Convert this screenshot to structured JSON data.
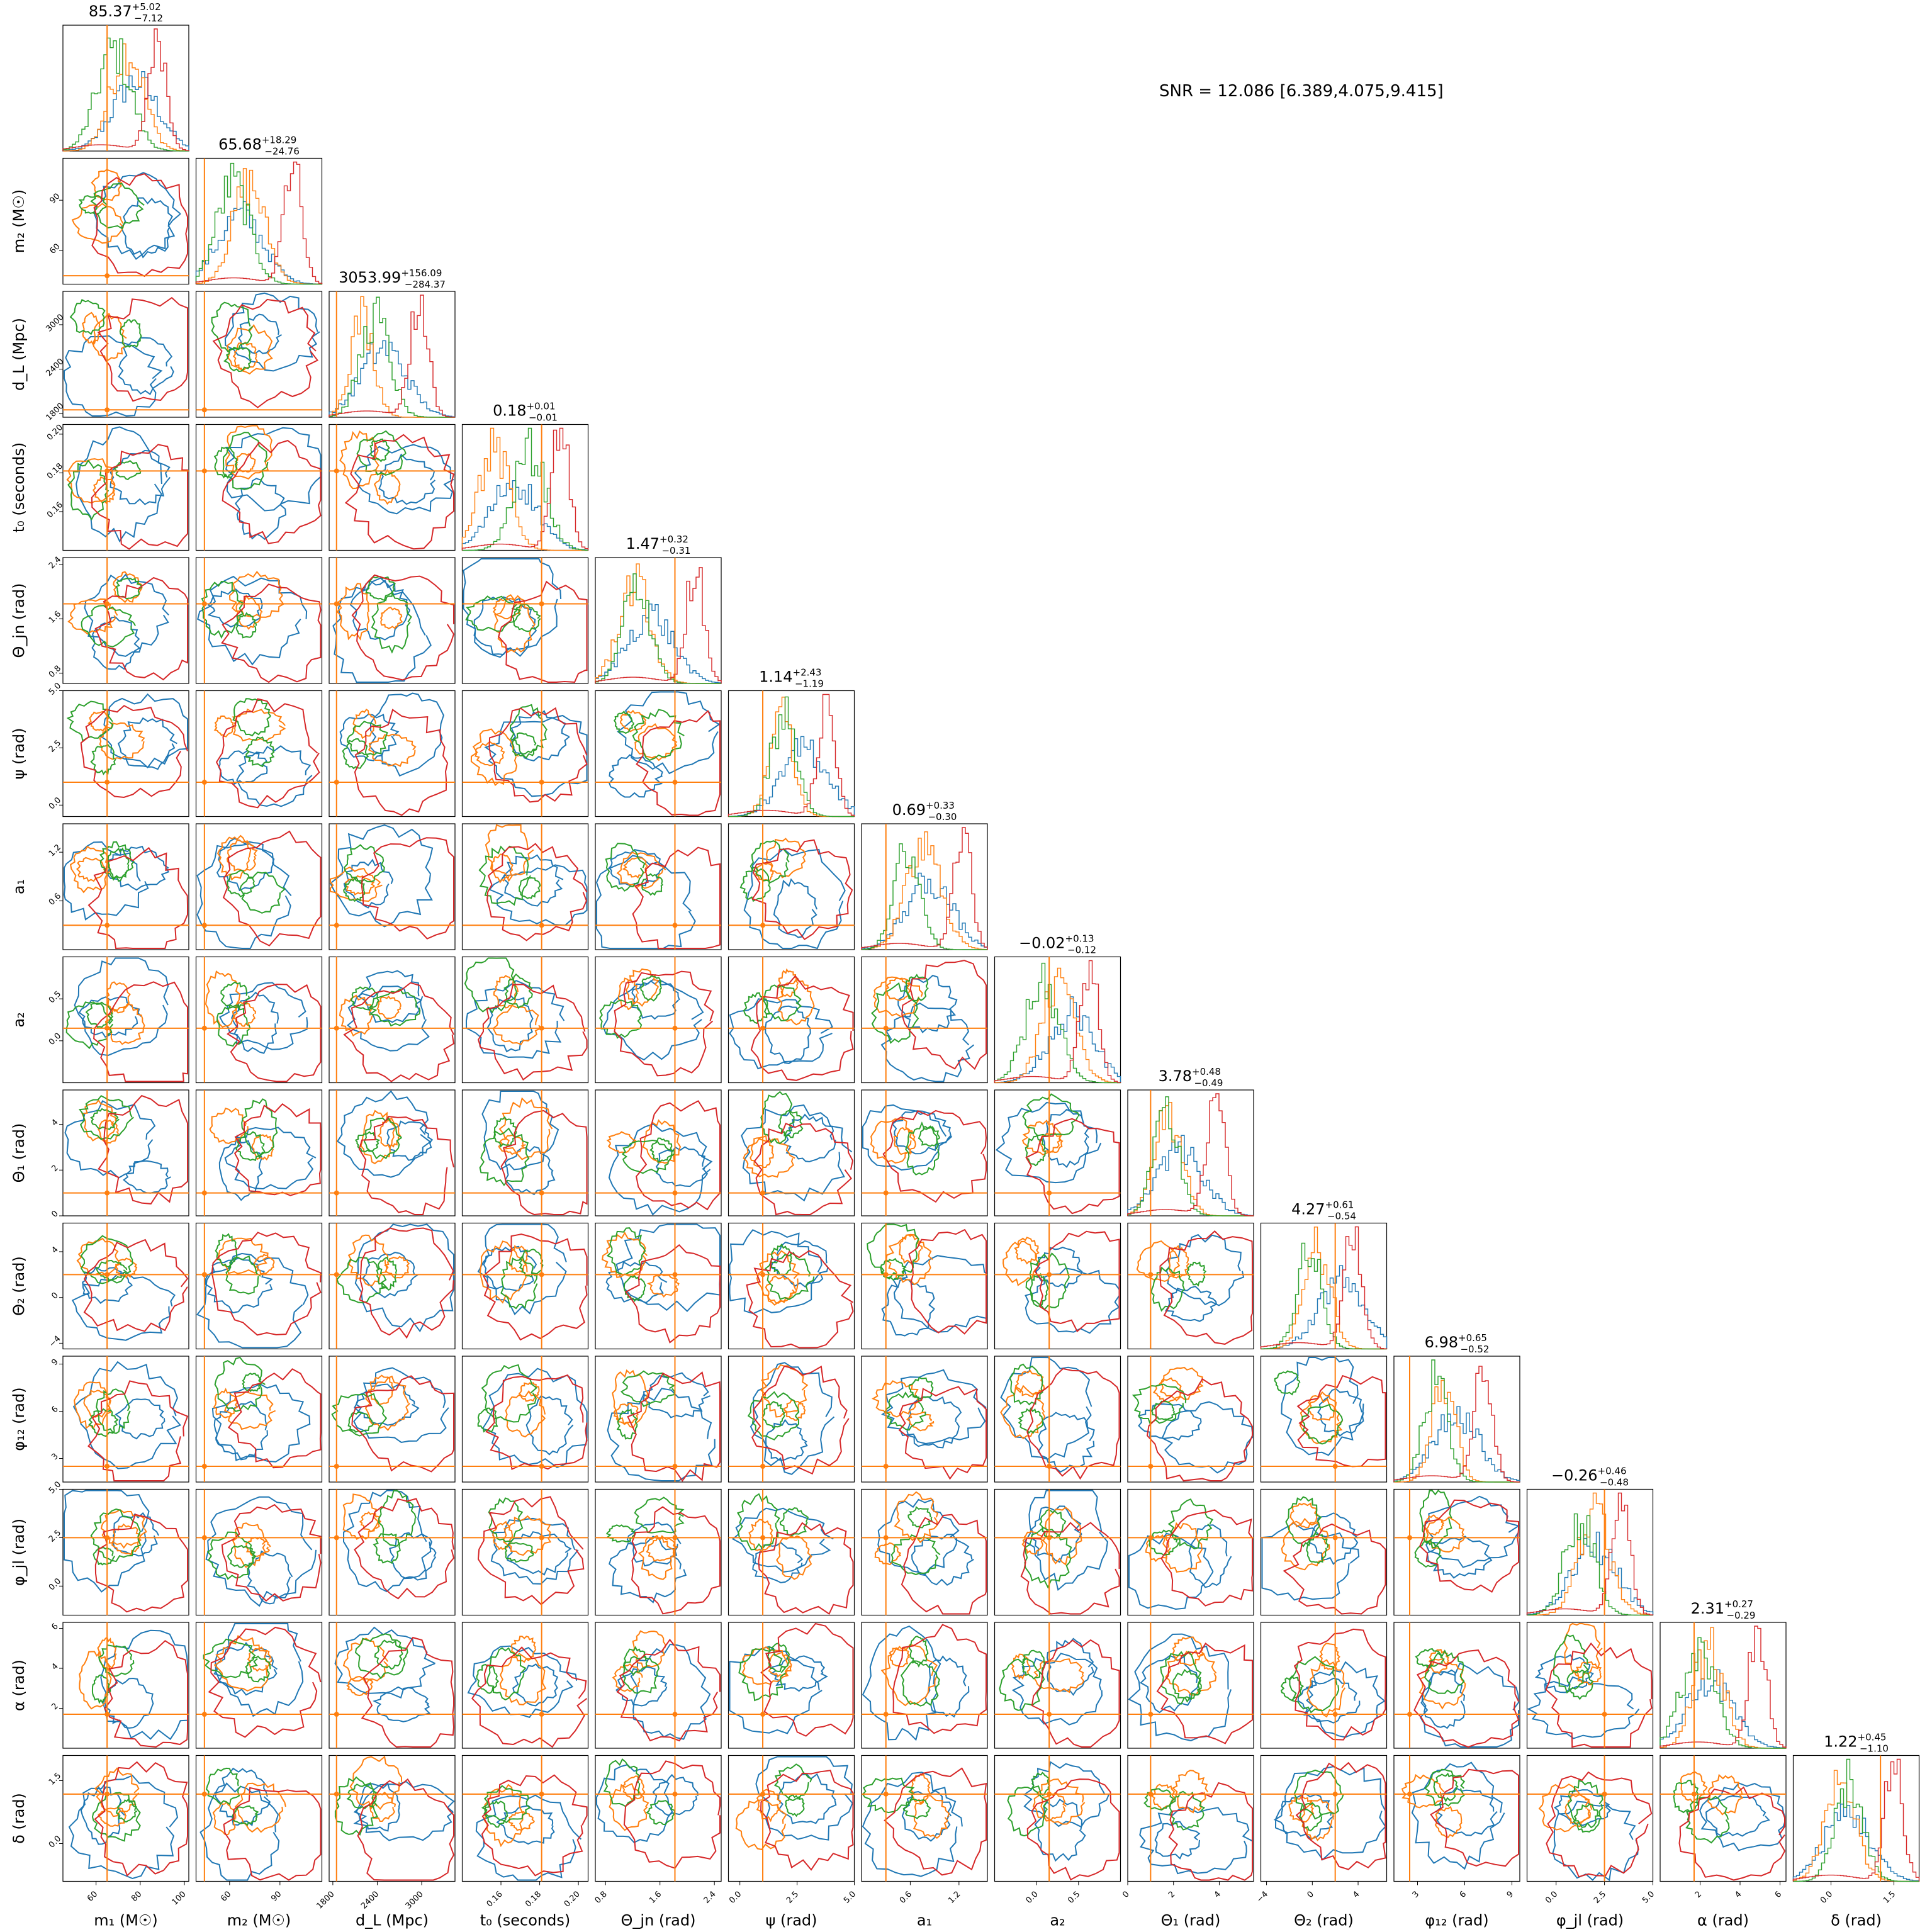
{
  "figure": {
    "annotation": "SNR = 12.086 [6.389,4.075,9.415]"
  },
  "chart_data": {
    "type": "corner",
    "series": [
      {
        "name": "",
        "color": "#1f77b4"
      },
      {
        "name": "",
        "color": "#ff7f0e"
      },
      {
        "name": "",
        "color": "#2ca02c"
      },
      {
        "name": "",
        "color": "#d62728"
      }
    ],
    "truth_color": "#ff7f0e",
    "parameters": [
      {
        "label": "m₁ (M☉)",
        "title": "85.37",
        "plus": "+5.02",
        "minus": "−7.12",
        "range": [
          45,
          102
        ],
        "ticks": [
          "60",
          "80",
          "100"
        ],
        "ticks_x": [
          60,
          80,
          100
        ],
        "truth": 65
      },
      {
        "label": "m₂ (M☉)",
        "title": "65.68",
        "plus": "+18.29",
        "minus": "−24.76",
        "range": [
          40,
          115
        ],
        "ticks": [
          "60",
          "90"
        ],
        "ticks_x": [
          60,
          90
        ],
        "truth": 45
      },
      {
        "label": "d_L (Mpc)",
        "title": "3053.99",
        "plus": "+156.09",
        "minus": "−284.37",
        "range": [
          1750,
          3450
        ],
        "ticks": [
          "1800",
          "2400",
          "3000"
        ],
        "ticks_x": [
          1800,
          2400,
          3000
        ],
        "truth": 1850
      },
      {
        "label": "t₀ (seconds)",
        "title": "0.18",
        "plus": "+0.01",
        "minus": "−0.01",
        "range": [
          0.14,
          0.205
        ],
        "ticks": [
          "0.16",
          "0.18",
          "0.20"
        ],
        "ticks_x": [
          0.16,
          0.18,
          0.2
        ],
        "truth": 0.181
      },
      {
        "label": "Θ_jn (rad)",
        "title": "1.47",
        "plus": "+0.32",
        "minus": "−0.31",
        "range": [
          0.65,
          2.5
        ],
        "ticks": [
          "0.8",
          "1.6",
          "2.4"
        ],
        "ticks_x": [
          0.8,
          1.6,
          2.4
        ],
        "truth": 1.82
      },
      {
        "label": "ψ (rad)",
        "title": "1.14",
        "plus": "+2.43",
        "minus": "−1.19",
        "range": [
          -0.5,
          5.0
        ],
        "ticks": [
          "0.0",
          "2.5",
          "5.0"
        ],
        "ticks_x": [
          0.0,
          2.5,
          5.0
        ],
        "truth": 1.0
      },
      {
        "label": "a₁",
        "title": "0.69",
        "plus": "+0.33",
        "minus": "−0.30",
        "range": [
          0.0,
          1.55
        ],
        "ticks": [
          "0.6",
          "1.2"
        ],
        "ticks_x": [
          0.6,
          1.2
        ],
        "truth": 0.3
      },
      {
        "label": "a₂",
        "title": "−0.02",
        "plus": "+0.13",
        "minus": "−0.12",
        "range": [
          -0.5,
          1.0
        ],
        "ticks": [
          "0.0",
          "0.5"
        ],
        "ticks_x": [
          0.0,
          0.5
        ],
        "truth": 0.15
      },
      {
        "label": "Θ₁ (rad)",
        "title": "3.78",
        "plus": "+0.48",
        "minus": "−0.49",
        "range": [
          0,
          5.5
        ],
        "ticks": [
          "0",
          "2",
          "4"
        ],
        "ticks_x": [
          0,
          2,
          4
        ],
        "truth": 1.0
      },
      {
        "label": "Θ₂ (rad)",
        "title": "4.27",
        "plus": "+0.61",
        "minus": "−0.54",
        "range": [
          -4.5,
          6.5
        ],
        "ticks": [
          "−4",
          "0",
          "4"
        ],
        "ticks_x": [
          -4,
          0,
          4
        ],
        "truth": 2.0
      },
      {
        "label": "φ₁₂ (rad)",
        "title": "6.98",
        "plus": "+0.65",
        "minus": "−0.52",
        "range": [
          1.5,
          9.5
        ],
        "ticks": [
          "3",
          "6",
          "9"
        ],
        "ticks_x": [
          3,
          6,
          9
        ],
        "truth": 2.5
      },
      {
        "label": "φ_jl (rad)",
        "title": "−0.26",
        "plus": "+0.46",
        "minus": "−0.48",
        "range": [
          -1.5,
          5.0
        ],
        "ticks": [
          "0.0",
          "2.5",
          "5.0"
        ],
        "ticks_x": [
          0.0,
          2.5,
          5.0
        ],
        "truth": 2.5
      },
      {
        "label": "α (rad)",
        "title": "2.31",
        "plus": "+0.27",
        "minus": "−0.29",
        "range": [
          0.0,
          6.3
        ],
        "ticks": [
          "2",
          "4",
          "6"
        ],
        "ticks_x": [
          2,
          4,
          6
        ],
        "truth": 1.7
      },
      {
        "label": "δ (rad)",
        "title": "1.22",
        "plus": "+0.45",
        "minus": "−1.10",
        "range": [
          -0.9,
          2.1
        ],
        "ticks": [
          "0.0",
          "1.5"
        ],
        "ticks_x": [
          0.0,
          1.5
        ],
        "truth": 1.18
      }
    ],
    "row_ticks": [
      [
        "90",
        "60"
      ],
      [
        "3000",
        "2400",
        "1800"
      ],
      [
        "0.20",
        "0.18",
        "0.16"
      ],
      [
        "2.4",
        "1.6",
        "0.8"
      ],
      [
        "5.0",
        "2.5",
        "0.0"
      ],
      [
        "1.2",
        "0.6"
      ],
      [
        "0.5",
        "0.0"
      ],
      [
        "4",
        "2",
        "0"
      ],
      [
        "4",
        "0",
        "−4"
      ],
      [
        "9",
        "6",
        "3"
      ],
      [
        "5.0",
        "2.5",
        "0.0"
      ],
      [
        "6",
        "4",
        "2"
      ],
      [
        "1.5",
        "0.0"
      ]
    ],
    "grid": false,
    "legend": "none"
  }
}
